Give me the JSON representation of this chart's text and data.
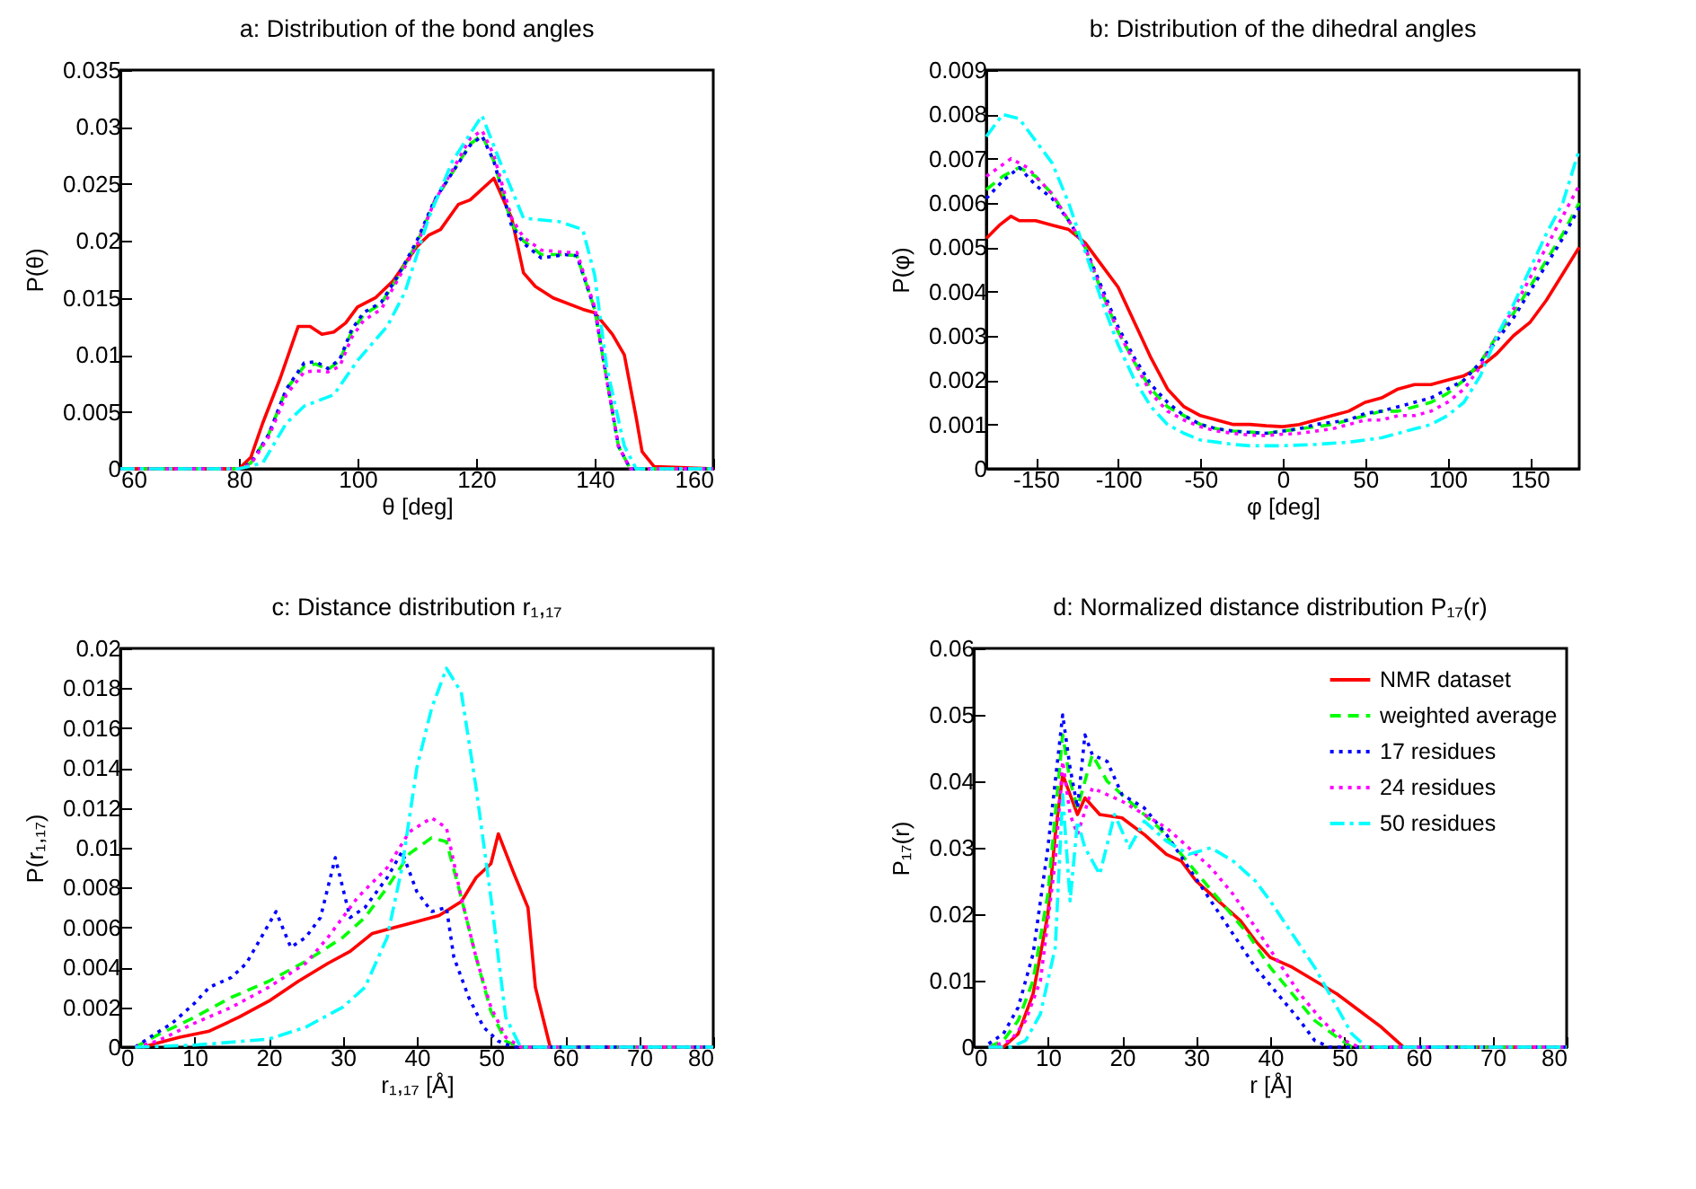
{
  "chart_data": [
    {
      "type": "line",
      "title": "a: Distribution of the bond angles",
      "xlabel": "θ [deg]",
      "ylabel": "P(θ)",
      "xlim": [
        60,
        160
      ],
      "xticks": [
        60,
        80,
        100,
        120,
        140,
        160
      ],
      "ylim": [
        0,
        0.035
      ],
      "yticks": [
        0,
        0.005,
        0.01,
        0.015,
        0.02,
        0.025,
        0.03,
        0.035
      ],
      "grid": false,
      "series": [
        {
          "color": "#ff0000",
          "line_style": "solid",
          "x": [
            60,
            80,
            82,
            84,
            87,
            90,
            92,
            94,
            96,
            98,
            100,
            103,
            106,
            110,
            112,
            114,
            117,
            119,
            123,
            126,
            128,
            130,
            133,
            138,
            140,
            143,
            145,
            147,
            148,
            150,
            160
          ],
          "values": [
            0,
            0,
            0.001,
            0.004,
            0.008,
            0.0125,
            0.0125,
            0.0118,
            0.012,
            0.0128,
            0.0142,
            0.015,
            0.0165,
            0.0195,
            0.0205,
            0.021,
            0.0232,
            0.0236,
            0.0255,
            0.022,
            0.0172,
            0.016,
            0.015,
            0.014,
            0.0137,
            0.0118,
            0.01,
            0.0045,
            0.0015,
            0.0002,
            0
          ]
        },
        {
          "color": "#00ff00",
          "line_style": "dashed",
          "x": [
            60,
            80,
            82,
            85,
            88,
            91,
            93,
            95,
            97,
            99,
            101,
            104,
            107,
            110,
            113,
            116,
            119,
            121,
            123,
            126,
            128,
            131,
            135,
            137,
            140,
            142,
            144,
            146,
            160
          ],
          "values": [
            0,
            0,
            0.0005,
            0.003,
            0.007,
            0.009,
            0.0092,
            0.0087,
            0.0095,
            0.012,
            0.0135,
            0.0145,
            0.017,
            0.0198,
            0.0235,
            0.026,
            0.0285,
            0.0293,
            0.027,
            0.0215,
            0.02,
            0.0188,
            0.0188,
            0.0187,
            0.014,
            0.008,
            0.002,
            0,
            0
          ]
        },
        {
          "color": "#0000ff",
          "line_style": "dotted",
          "x": [
            60,
            80,
            82,
            85,
            88,
            91,
            93,
            95,
            97,
            99,
            101,
            104,
            107,
            110,
            113,
            116,
            119,
            121,
            123,
            126,
            128,
            131,
            135,
            137,
            140,
            142,
            144,
            146,
            160
          ],
          "values": [
            0,
            0,
            0.0005,
            0.003,
            0.007,
            0.0093,
            0.0094,
            0.0088,
            0.0096,
            0.0122,
            0.0137,
            0.0146,
            0.0171,
            0.02,
            0.0236,
            0.026,
            0.0284,
            0.0292,
            0.027,
            0.0213,
            0.0198,
            0.0185,
            0.0188,
            0.0187,
            0.014,
            0.008,
            0.002,
            0,
            0
          ]
        },
        {
          "color": "#ff00ff",
          "line_style": "dotted",
          "x": [
            60,
            80,
            82,
            85,
            88,
            91,
            93,
            95,
            97,
            99,
            101,
            104,
            107,
            110,
            113,
            116,
            119,
            121,
            123,
            126,
            128,
            131,
            135,
            137,
            140,
            142,
            144,
            146,
            160
          ],
          "values": [
            0,
            0,
            0.0004,
            0.0028,
            0.0065,
            0.0085,
            0.0086,
            0.0085,
            0.009,
            0.0115,
            0.013,
            0.014,
            0.0168,
            0.0196,
            0.0235,
            0.0262,
            0.029,
            0.0297,
            0.0275,
            0.022,
            0.0203,
            0.0192,
            0.019,
            0.019,
            0.0142,
            0.008,
            0.002,
            0,
            0
          ]
        },
        {
          "color": "#00ffff",
          "line_style": "dashdot",
          "x": [
            60,
            80,
            84,
            88,
            91,
            96,
            100,
            105,
            108,
            112,
            116,
            121,
            124,
            128,
            134,
            138,
            140,
            142,
            145,
            147,
            160
          ],
          "values": [
            0,
            0,
            0.0005,
            0.004,
            0.0055,
            0.0065,
            0.0095,
            0.0125,
            0.0155,
            0.022,
            0.027,
            0.031,
            0.027,
            0.022,
            0.0217,
            0.021,
            0.017,
            0.009,
            0.002,
            0,
            0
          ]
        }
      ]
    },
    {
      "type": "line",
      "title": "b: Distribution of the dihedral angles",
      "xlabel": "φ [deg]",
      "ylabel": "P(φ)",
      "xlim": [
        -180,
        180
      ],
      "xticks": [
        -150,
        -100,
        -50,
        0,
        50,
        100,
        150
      ],
      "ylim": [
        0,
        0.009
      ],
      "yticks": [
        0,
        0.001,
        0.002,
        0.003,
        0.004,
        0.005,
        0.006,
        0.007,
        0.008,
        0.009
      ],
      "grid": false,
      "series": [
        {
          "color": "#ff0000",
          "line_style": "solid",
          "x": [
            -180,
            -172,
            -165,
            -160,
            -150,
            -140,
            -130,
            -120,
            -110,
            -100,
            -90,
            -80,
            -70,
            -60,
            -50,
            -40,
            -30,
            -20,
            -10,
            0,
            10,
            20,
            30,
            40,
            50,
            60,
            70,
            80,
            90,
            100,
            110,
            120,
            130,
            140,
            150,
            160,
            170,
            180
          ],
          "values": [
            0.0052,
            0.0055,
            0.0057,
            0.0056,
            0.0056,
            0.0055,
            0.0054,
            0.0051,
            0.0046,
            0.0041,
            0.0033,
            0.0025,
            0.0018,
            0.0014,
            0.0012,
            0.0011,
            0.001,
            0.001,
            0.00097,
            0.00095,
            0.001,
            0.0011,
            0.0012,
            0.0013,
            0.0015,
            0.0016,
            0.0018,
            0.0019,
            0.0019,
            0.002,
            0.0021,
            0.0023,
            0.0026,
            0.003,
            0.0033,
            0.0038,
            0.0044,
            0.005
          ]
        },
        {
          "color": "#00ff00",
          "line_style": "dashed",
          "x": [
            -180,
            -170,
            -160,
            -150,
            -140,
            -130,
            -120,
            -110,
            -100,
            -90,
            -80,
            -70,
            -60,
            -50,
            -40,
            -30,
            -20,
            -10,
            0,
            10,
            20,
            30,
            40,
            50,
            60,
            70,
            80,
            90,
            100,
            110,
            120,
            130,
            140,
            150,
            160,
            170,
            180
          ],
          "values": [
            0.0063,
            0.0066,
            0.0068,
            0.0066,
            0.0062,
            0.0056,
            0.005,
            0.004,
            0.0031,
            0.0024,
            0.0018,
            0.0014,
            0.0012,
            0.001,
            0.0009,
            0.00085,
            0.00083,
            0.0008,
            0.00085,
            0.0009,
            0.00095,
            0.001,
            0.0011,
            0.0012,
            0.0013,
            0.0013,
            0.0014,
            0.0015,
            0.0017,
            0.002,
            0.0024,
            0.003,
            0.0035,
            0.0041,
            0.0047,
            0.0053,
            0.006
          ]
        },
        {
          "color": "#0000ff",
          "line_style": "dotted",
          "x": [
            -180,
            -170,
            -160,
            -150,
            -140,
            -130,
            -120,
            -110,
            -100,
            -90,
            -80,
            -70,
            -60,
            -50,
            -40,
            -30,
            -20,
            -10,
            0,
            10,
            20,
            30,
            40,
            50,
            60,
            70,
            80,
            90,
            100,
            110,
            120,
            130,
            140,
            150,
            160,
            170,
            180
          ],
          "values": [
            0.0061,
            0.0065,
            0.0068,
            0.0064,
            0.0061,
            0.0056,
            0.005,
            0.0041,
            0.0032,
            0.0025,
            0.0019,
            0.0015,
            0.0012,
            0.001,
            0.0009,
            0.00085,
            0.00082,
            0.0008,
            0.00085,
            0.0009,
            0.001,
            0.00105,
            0.0011,
            0.00125,
            0.0013,
            0.0014,
            0.0015,
            0.0016,
            0.0018,
            0.002,
            0.0024,
            0.0029,
            0.0034,
            0.004,
            0.0046,
            0.0052,
            0.0059
          ]
        },
        {
          "color": "#ff00ff",
          "line_style": "dotted",
          "x": [
            -180,
            -165,
            -155,
            -150,
            -140,
            -130,
            -120,
            -110,
            -100,
            -90,
            -80,
            -70,
            -60,
            -50,
            -40,
            -30,
            -20,
            -10,
            0,
            10,
            20,
            30,
            40,
            50,
            60,
            70,
            80,
            90,
            100,
            110,
            120,
            130,
            140,
            150,
            160,
            170,
            180
          ],
          "values": [
            0.0066,
            0.007,
            0.0068,
            0.0066,
            0.0062,
            0.0056,
            0.005,
            0.004,
            0.0031,
            0.0024,
            0.0017,
            0.0013,
            0.0011,
            0.00095,
            0.00085,
            0.0008,
            0.00076,
            0.00075,
            0.00078,
            0.0008,
            0.00085,
            0.0009,
            0.001,
            0.0011,
            0.0011,
            0.0012,
            0.0012,
            0.0013,
            0.0015,
            0.0018,
            0.0023,
            0.003,
            0.0036,
            0.0043,
            0.005,
            0.0057,
            0.0064
          ]
        },
        {
          "color": "#00ffff",
          "line_style": "dashdot",
          "x": [
            -180,
            -170,
            -160,
            -150,
            -140,
            -130,
            -120,
            -110,
            -100,
            -90,
            -80,
            -70,
            -60,
            -50,
            -40,
            -30,
            -20,
            0,
            20,
            40,
            60,
            80,
            90,
            100,
            110,
            120,
            130,
            140,
            150,
            160,
            170,
            180
          ],
          "values": [
            0.0075,
            0.008,
            0.0079,
            0.0074,
            0.0069,
            0.006,
            0.0049,
            0.0038,
            0.0028,
            0.002,
            0.0014,
            0.001,
            0.0008,
            0.00065,
            0.0006,
            0.00055,
            0.00052,
            0.00052,
            0.00055,
            0.0006,
            0.0007,
            0.0009,
            0.001,
            0.0012,
            0.0015,
            0.0021,
            0.003,
            0.0037,
            0.0045,
            0.0053,
            0.006,
            0.0072
          ]
        }
      ]
    },
    {
      "type": "line",
      "title": "c: Distance distribution r₁,₁₇",
      "xlabel": "r₁,₁₇ [Å]",
      "ylabel": "P(r₁,₁₇)",
      "xlim": [
        0,
        80
      ],
      "xticks": [
        0,
        10,
        20,
        30,
        40,
        50,
        60,
        70,
        80
      ],
      "ylim": [
        0,
        0.02
      ],
      "yticks": [
        0,
        0.002,
        0.004,
        0.006,
        0.008,
        0.01,
        0.012,
        0.014,
        0.016,
        0.018,
        0.02
      ],
      "grid": false,
      "series": [
        {
          "color": "#ff0000",
          "line_style": "solid",
          "x": [
            3,
            5,
            8,
            12,
            16,
            20,
            24,
            28,
            31,
            34,
            37,
            40,
            43,
            46,
            48,
            50,
            51,
            53,
            55,
            56,
            57,
            58,
            80
          ],
          "values": [
            0,
            0.0002,
            0.0005,
            0.0008,
            0.0015,
            0.0023,
            0.0033,
            0.0042,
            0.0048,
            0.0057,
            0.006,
            0.0063,
            0.0066,
            0.0073,
            0.0085,
            0.0092,
            0.0107,
            0.0088,
            0.007,
            0.003,
            0.0015,
            0,
            0
          ]
        },
        {
          "color": "#00ff00",
          "line_style": "dashed",
          "x": [
            2,
            5,
            10,
            15,
            20,
            25,
            30,
            33,
            36,
            39,
            42,
            44,
            46,
            48,
            50,
            52,
            54,
            80
          ],
          "values": [
            0,
            0.0006,
            0.0015,
            0.0025,
            0.0033,
            0.0043,
            0.0055,
            0.0065,
            0.008,
            0.0097,
            0.0105,
            0.0103,
            0.0075,
            0.0045,
            0.0018,
            0.0003,
            0,
            0
          ]
        },
        {
          "color": "#0000ff",
          "line_style": "dotted",
          "x": [
            2,
            4,
            7,
            10,
            12,
            15,
            17,
            19,
            21,
            23,
            25,
            27,
            29,
            31,
            33,
            36,
            38,
            40,
            42,
            44,
            45,
            47,
            49,
            51,
            53,
            80
          ],
          "values": [
            0,
            0.0005,
            0.0012,
            0.0022,
            0.003,
            0.0035,
            0.0042,
            0.0055,
            0.0068,
            0.005,
            0.0055,
            0.0065,
            0.0095,
            0.0065,
            0.007,
            0.0085,
            0.0098,
            0.0078,
            0.0068,
            0.007,
            0.0045,
            0.0025,
            0.001,
            0.0003,
            0,
            0
          ]
        },
        {
          "color": "#ff00ff",
          "line_style": "dotted",
          "x": [
            2,
            5,
            10,
            15,
            20,
            25,
            28,
            32,
            36,
            39,
            42,
            44,
            46,
            48,
            50,
            52,
            54,
            80
          ],
          "values": [
            0,
            0.0003,
            0.0012,
            0.002,
            0.003,
            0.0042,
            0.0055,
            0.0075,
            0.009,
            0.0108,
            0.0115,
            0.011,
            0.0075,
            0.0045,
            0.002,
            0.0005,
            0,
            0
          ]
        },
        {
          "color": "#00ffff",
          "line_style": "dashdot",
          "x": [
            2,
            10,
            20,
            25,
            30,
            33,
            36,
            38,
            40,
            42,
            44,
            46,
            48,
            50,
            52,
            54,
            80
          ],
          "values": [
            0,
            0.0001,
            0.0004,
            0.001,
            0.002,
            0.003,
            0.0055,
            0.009,
            0.014,
            0.017,
            0.019,
            0.0178,
            0.013,
            0.0075,
            0.0015,
            0,
            0
          ]
        }
      ]
    },
    {
      "type": "line",
      "title": "d: Normalized distance distribution P₁₇(r)",
      "xlabel": "r [Å]",
      "ylabel": "P₁₇(r)",
      "xlim": [
        0,
        80
      ],
      "xticks": [
        0,
        10,
        20,
        30,
        40,
        50,
        60,
        70,
        80
      ],
      "ylim": [
        0,
        0.06
      ],
      "yticks": [
        0,
        0.01,
        0.02,
        0.03,
        0.04,
        0.05,
        0.06
      ],
      "grid": false,
      "legend": "top right",
      "series": [
        {
          "name": "NMR dataset",
          "color": "#ff0000",
          "line_style": "solid",
          "x": [
            2,
            4,
            6,
            8,
            10,
            11,
            12,
            13,
            14,
            15,
            17,
            20,
            23,
            26,
            28,
            30,
            33,
            36,
            38,
            40,
            43,
            46,
            49,
            52,
            55,
            57,
            58,
            80
          ],
          "values": [
            0,
            0,
            0.002,
            0.008,
            0.02,
            0.032,
            0.041,
            0.038,
            0.035,
            0.0375,
            0.035,
            0.0345,
            0.032,
            0.029,
            0.028,
            0.025,
            0.022,
            0.019,
            0.016,
            0.0135,
            0.012,
            0.01,
            0.008,
            0.0055,
            0.003,
            0.001,
            0,
            0
          ]
        },
        {
          "name": "weighted average",
          "color": "#00ff00",
          "line_style": "dashed",
          "x": [
            2,
            4,
            6,
            8,
            10,
            11,
            12,
            13,
            14,
            16,
            18,
            20,
            22,
            25,
            28,
            31,
            34,
            37,
            40,
            43,
            46,
            49,
            51,
            80
          ],
          "values": [
            0,
            0.001,
            0.004,
            0.01,
            0.023,
            0.035,
            0.047,
            0.04,
            0.036,
            0.044,
            0.04,
            0.038,
            0.036,
            0.033,
            0.029,
            0.025,
            0.021,
            0.017,
            0.012,
            0.008,
            0.004,
            0.0015,
            0,
            0
          ]
        },
        {
          "name": "17 residues",
          "color": "#0000ff",
          "line_style": "dotted",
          "x": [
            2,
            4,
            6,
            8,
            10,
            11,
            12,
            13,
            14,
            15,
            16,
            18,
            20,
            23,
            26,
            29,
            32,
            35,
            38,
            41,
            44,
            46,
            48,
            80
          ],
          "values": [
            0.0005,
            0.002,
            0.006,
            0.014,
            0.03,
            0.04,
            0.05,
            0.042,
            0.036,
            0.047,
            0.044,
            0.043,
            0.038,
            0.036,
            0.032,
            0.027,
            0.022,
            0.017,
            0.012,
            0.008,
            0.004,
            0.001,
            0,
            0
          ]
        },
        {
          "name": "24 residues",
          "color": "#ff00ff",
          "line_style": "dotted",
          "x": [
            2,
            5,
            7,
            9,
            11,
            12,
            13,
            14,
            16,
            18,
            20,
            23,
            26,
            29,
            32,
            35,
            38,
            41,
            44,
            47,
            50,
            52,
            80
          ],
          "values": [
            0,
            0.001,
            0.004,
            0.01,
            0.028,
            0.043,
            0.035,
            0.032,
            0.039,
            0.038,
            0.037,
            0.035,
            0.033,
            0.03,
            0.027,
            0.023,
            0.018,
            0.013,
            0.008,
            0.004,
            0.001,
            0,
            0
          ]
        },
        {
          "name": "50 residues",
          "color": "#00ffff",
          "line_style": "dashdot",
          "x": [
            2,
            5,
            7,
            9,
            11,
            12,
            13,
            14,
            15,
            17,
            19,
            21,
            23,
            26,
            29,
            32,
            35,
            38,
            40,
            43,
            46,
            49,
            51,
            53,
            80
          ],
          "values": [
            0,
            0,
            0.001,
            0.005,
            0.015,
            0.038,
            0.022,
            0.034,
            0.03,
            0.026,
            0.035,
            0.03,
            0.034,
            0.031,
            0.029,
            0.03,
            0.028,
            0.025,
            0.022,
            0.017,
            0.012,
            0.006,
            0.002,
            0,
            0
          ]
        }
      ]
    }
  ]
}
